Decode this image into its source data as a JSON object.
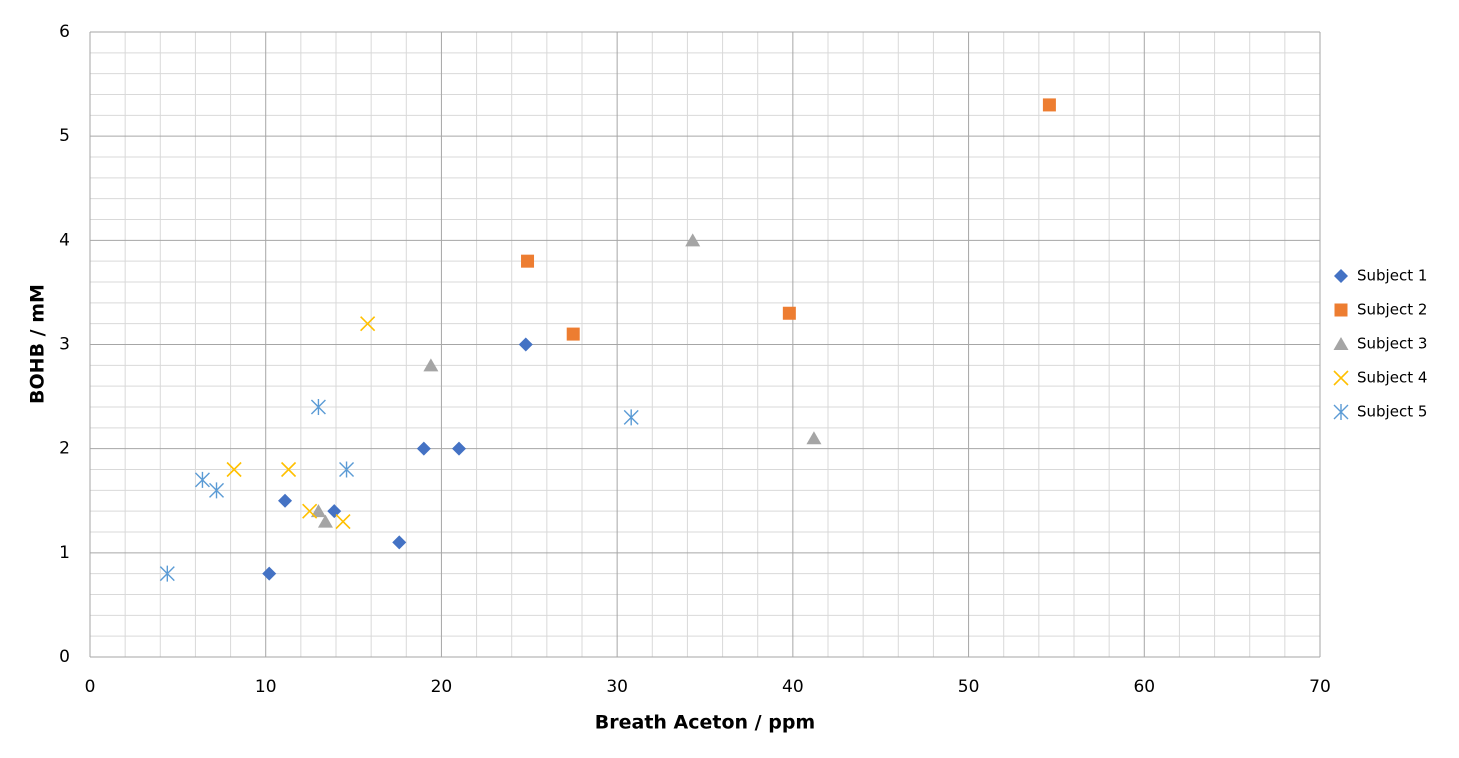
{
  "chart_data": {
    "type": "scatter",
    "x_label": "Breath Aceton / ppm",
    "y_label": "BOHB / mM",
    "xlim": [
      0,
      70
    ],
    "xticks": [
      0,
      10,
      20,
      30,
      40,
      50,
      60,
      70
    ],
    "ylim": [
      0,
      6
    ],
    "yticks": [
      0,
      1,
      2,
      3,
      4,
      5,
      6
    ],
    "grid": true,
    "minor_grid": true,
    "legend": "right",
    "series": [
      {
        "name": "Subject 1",
        "color": "#4472c4",
        "marker": "diamond",
        "x": [
          10.2,
          11.1,
          13.9,
          17.6,
          19.0,
          21.0,
          24.8
        ],
        "values": [
          0.8,
          1.5,
          1.4,
          1.1,
          2.0,
          2.0,
          3.0
        ]
      },
      {
        "name": "Subject 2",
        "color": "#ed7d31",
        "marker": "square",
        "x": [
          24.9,
          27.5,
          39.8,
          54.6
        ],
        "values": [
          3.8,
          3.1,
          3.3,
          5.3
        ]
      },
      {
        "name": "Subject 3",
        "color": "#a5a5a5",
        "marker": "triangle",
        "x": [
          13.0,
          13.4,
          19.4,
          34.3,
          41.2
        ],
        "values": [
          1.4,
          1.3,
          2.8,
          4.0,
          2.1
        ]
      },
      {
        "name": "Subject 4",
        "color": "#ffc000",
        "marker": "x",
        "x": [
          8.2,
          11.3,
          12.5,
          14.4,
          15.8
        ],
        "values": [
          1.8,
          1.8,
          1.4,
          1.3,
          3.2
        ]
      },
      {
        "name": "Subject 5",
        "color": "#5b9bd5",
        "marker": "star",
        "x": [
          4.4,
          6.4,
          7.2,
          13.0,
          14.6,
          30.8
        ],
        "values": [
          0.8,
          1.7,
          1.6,
          2.4,
          1.8,
          2.3
        ]
      }
    ]
  }
}
